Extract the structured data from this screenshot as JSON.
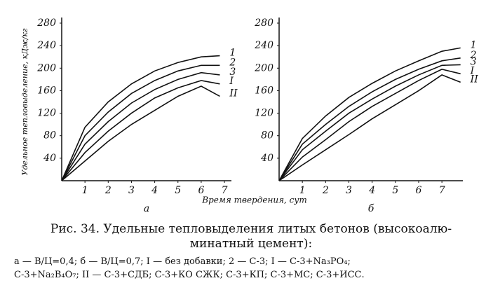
{
  "chart_data": [
    {
      "type": "line",
      "panel": "а",
      "ylabel": "Удельное тепловыделение, кДж/кг",
      "xlabel": "Время твердения, сут",
      "x": [
        0,
        1,
        2,
        3,
        4,
        5,
        6,
        6.8
      ],
      "xlim": [
        0,
        7.3
      ],
      "xticks": [
        1,
        2,
        3,
        4,
        5,
        6,
        7
      ],
      "ylim": [
        0,
        280
      ],
      "yticks": [
        40,
        80,
        120,
        160,
        200,
        240,
        280
      ],
      "series": [
        {
          "name": "1",
          "color": "#111111",
          "values": [
            0,
            95,
            140,
            172,
            195,
            210,
            220,
            222
          ]
        },
        {
          "name": "2",
          "color": "#111111",
          "values": [
            0,
            80,
            122,
            155,
            178,
            195,
            205,
            205
          ]
        },
        {
          "name": "3",
          "color": "#111111",
          "values": [
            0,
            65,
            105,
            138,
            162,
            180,
            192,
            188
          ]
        },
        {
          "name": "I",
          "color": "#111111",
          "values": [
            0,
            50,
            88,
            120,
            147,
            165,
            178,
            172
          ]
        },
        {
          "name": "II",
          "color": "#111111",
          "values": [
            0,
            35,
            70,
            100,
            125,
            150,
            168,
            150
          ]
        }
      ]
    },
    {
      "type": "line",
      "panel": "б",
      "x": [
        0,
        1,
        2,
        3,
        4,
        5,
        6,
        7,
        7.8
      ],
      "xlim": [
        0,
        7.9
      ],
      "xticks": [
        1,
        2,
        3,
        4,
        5,
        6,
        7
      ],
      "ylim": [
        0,
        280
      ],
      "yticks": [
        40,
        80,
        120,
        160,
        200,
        240,
        280
      ],
      "series": [
        {
          "name": "1",
          "color": "#111111",
          "values": [
            0,
            75,
            115,
            148,
            173,
            195,
            213,
            230,
            236
          ]
        },
        {
          "name": "2",
          "color": "#111111",
          "values": [
            0,
            65,
            100,
            132,
            158,
            180,
            198,
            213,
            218
          ]
        },
        {
          "name": "3",
          "color": "#111111",
          "values": [
            0,
            55,
            88,
            120,
            145,
            168,
            188,
            205,
            206
          ]
        },
        {
          "name": "I",
          "color": "#111111",
          "values": [
            0,
            42,
            73,
            105,
            132,
            155,
            178,
            198,
            190
          ]
        },
        {
          "name": "II",
          "color": "#111111",
          "values": [
            0,
            28,
            55,
            82,
            110,
            135,
            160,
            188,
            175
          ]
        }
      ]
    }
  ],
  "caption": {
    "title_lines": [
      "Рис. 34. Удельные тепловыделения литых бетонов (высокоалю-",
      "минатный цемент):"
    ],
    "note_lines": [
      "а — В/Ц=0,4; б — В/Ц=0,7; I — без добавки; 2 — С-3; I — С-3+Na₃PO₄;",
      "С-3+Na₂B₄O₇; II — С-3+СДБ; С-3+КО СЖК; С-3+КП; С-3+МС; С-3+ИСС."
    ]
  }
}
